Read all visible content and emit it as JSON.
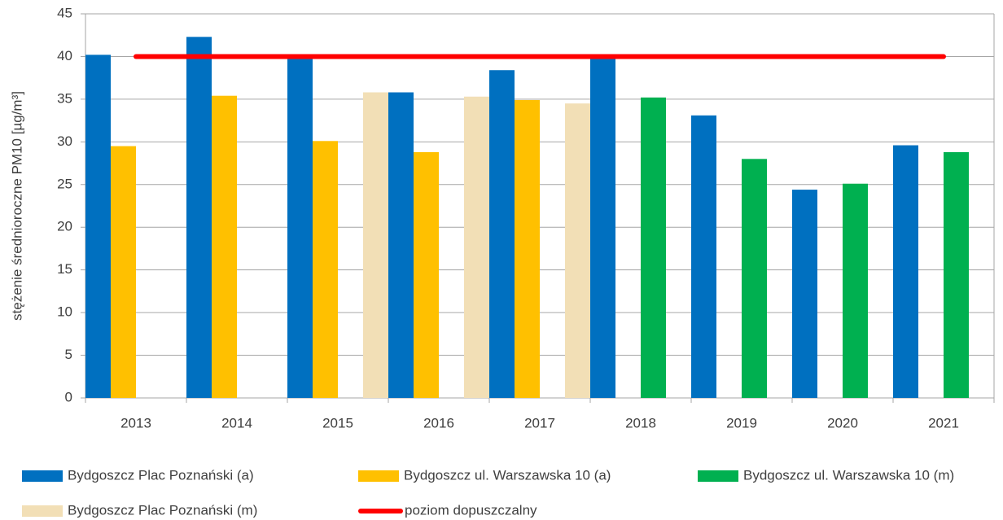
{
  "chart_data": {
    "type": "bar",
    "y_label": "stężenie średnioroczne PM10 [µg/m³]",
    "categories": [
      "2013",
      "2014",
      "2015",
      "2016",
      "2017",
      "2018",
      "2019",
      "2020",
      "2021"
    ],
    "series": [
      {
        "name": "Bydgoszcz Plac Poznański (a)",
        "color": "#0070c0",
        "values": [
          40.2,
          42.3,
          39.9,
          35.8,
          38.4,
          40.0,
          33.1,
          24.4,
          29.6
        ]
      },
      {
        "name": "Bydgoszcz ul. Warszawska 10 (a)",
        "color": "#ffc000",
        "values": [
          29.5,
          35.4,
          30.1,
          28.8,
          34.9,
          null,
          null,
          null,
          null
        ]
      },
      {
        "name": "Bydgoszcz ul. Warszawska 10 (m)",
        "color": "#00b050",
        "values": [
          null,
          null,
          null,
          null,
          null,
          35.2,
          28.0,
          25.1,
          28.8
        ]
      },
      {
        "name": "Bydgoszcz Plac Poznański (m)",
        "color": "#f2dfb6",
        "values": [
          null,
          null,
          35.8,
          35.3,
          34.5,
          null,
          null,
          null,
          null
        ]
      },
      {
        "name": "poziom dopuszczalny",
        "color": "#ff0000",
        "type": "line",
        "values": [
          40,
          40,
          40,
          40,
          40,
          40,
          40,
          40,
          40
        ]
      }
    ],
    "ylim": [
      0,
      45
    ],
    "yticks": [
      0,
      5,
      10,
      15,
      20,
      25,
      30,
      35,
      40,
      45
    ],
    "grid": true,
    "legend": "bottom"
  }
}
